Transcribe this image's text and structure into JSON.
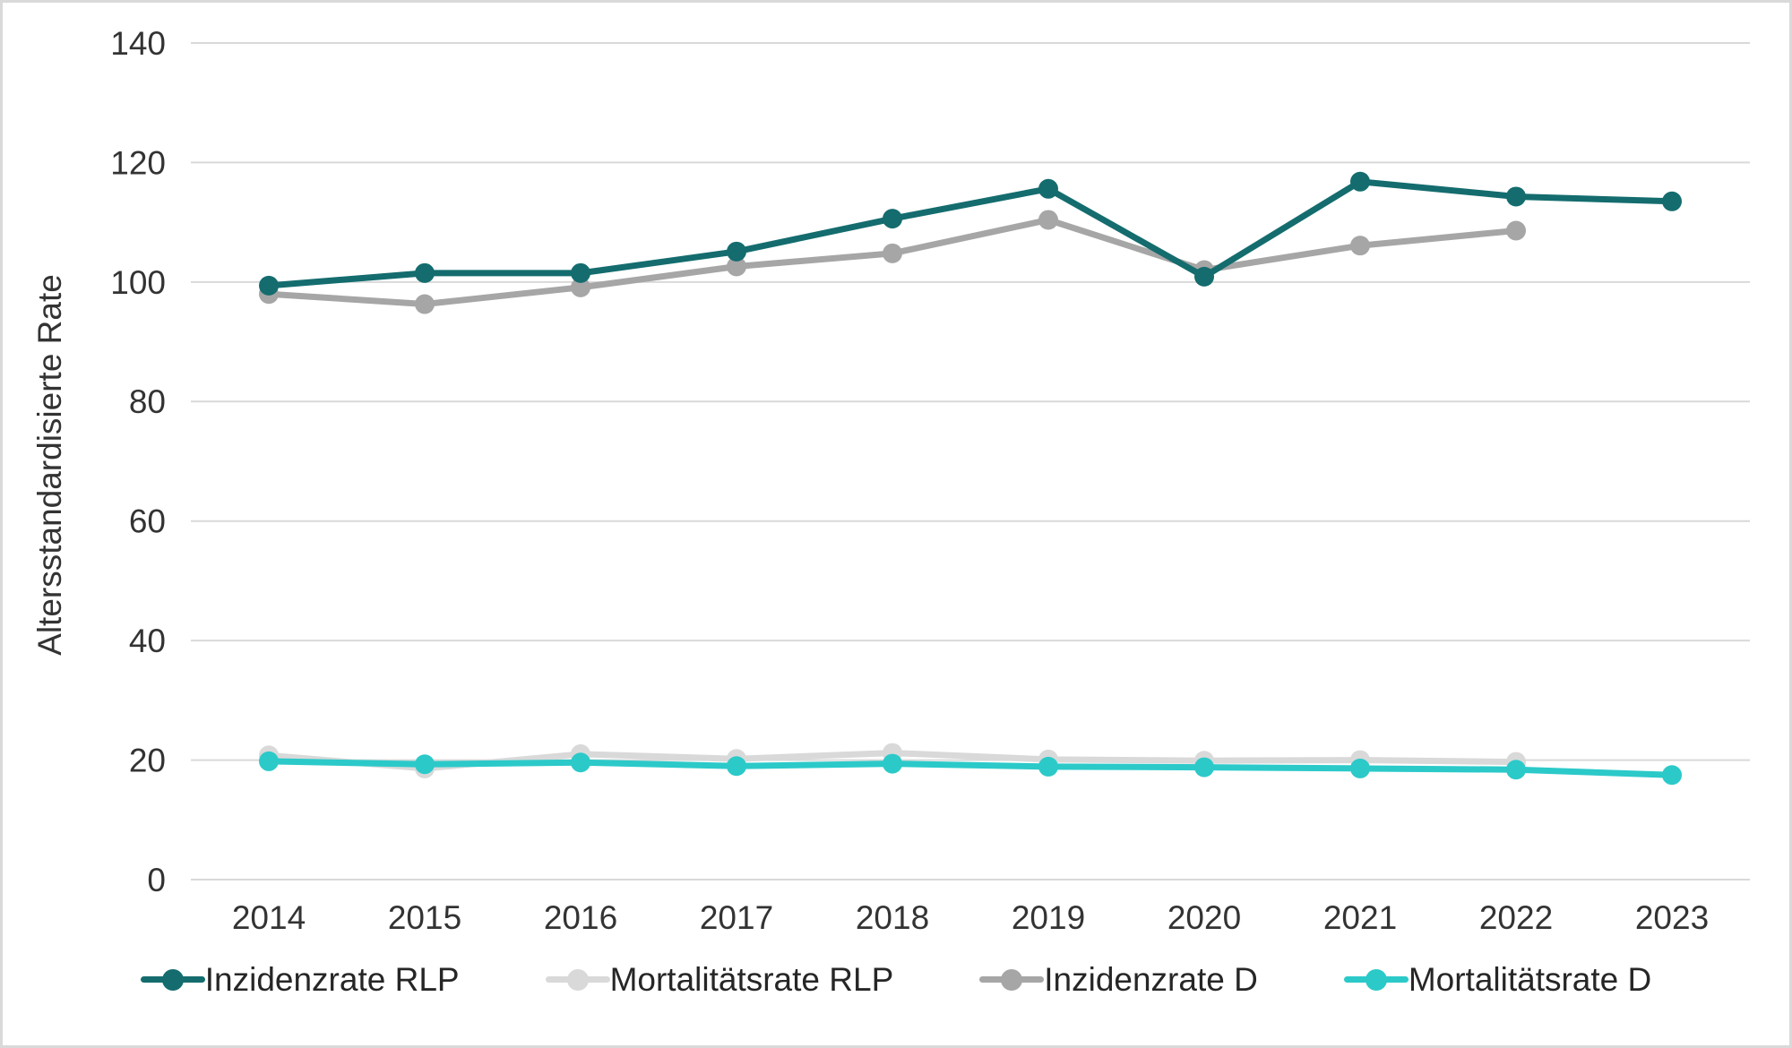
{
  "page": {
    "background_color": "#ffffff",
    "frame_border_color": "#d9d9d9"
  },
  "chart_data": {
    "type": "line",
    "title": "",
    "xlabel": "",
    "ylabel": "Altersstandardisierte Rate",
    "ylim": [
      0,
      140
    ],
    "yticks": [
      0,
      20,
      40,
      60,
      80,
      100,
      120,
      140
    ],
    "grid": "horizontal",
    "gridline_color": "#d9d9d9",
    "tick_label_color": "#333333",
    "legend_position": "bottom",
    "categories": [
      "2014",
      "2015",
      "2016",
      "2017",
      "2018",
      "2019",
      "2020",
      "2021",
      "2022",
      "2023"
    ],
    "series": [
      {
        "name": "Inzidenzrate RLP",
        "slug": "inzidenzrate-rlp",
        "color": "#146c6e",
        "values": [
          99.4,
          101.5,
          101.5,
          105.1,
          110.6,
          115.6,
          100.9,
          116.8,
          114.3,
          113.5
        ]
      },
      {
        "name": "Mortalitätsrate RLP",
        "slug": "mortalitaetsrate-rlp",
        "color": "#d9d9d9",
        "values": [
          20.8,
          18.6,
          21.0,
          20.2,
          21.2,
          20.1,
          19.9,
          20.0,
          19.7,
          null
        ]
      },
      {
        "name": "Inzidenzrate D",
        "slug": "inzidenzrate-d",
        "color": "#a6a6a6",
        "values": [
          98.0,
          96.3,
          99.1,
          102.6,
          104.8,
          110.4,
          102.0,
          106.1,
          108.6,
          null
        ]
      },
      {
        "name": "Mortalitätsrate D",
        "slug": "mortalitaetsrate-d",
        "color": "#2cc9c9",
        "values": [
          19.8,
          19.3,
          19.6,
          19.0,
          19.4,
          18.9,
          18.8,
          18.6,
          18.4,
          17.5
        ]
      }
    ]
  }
}
